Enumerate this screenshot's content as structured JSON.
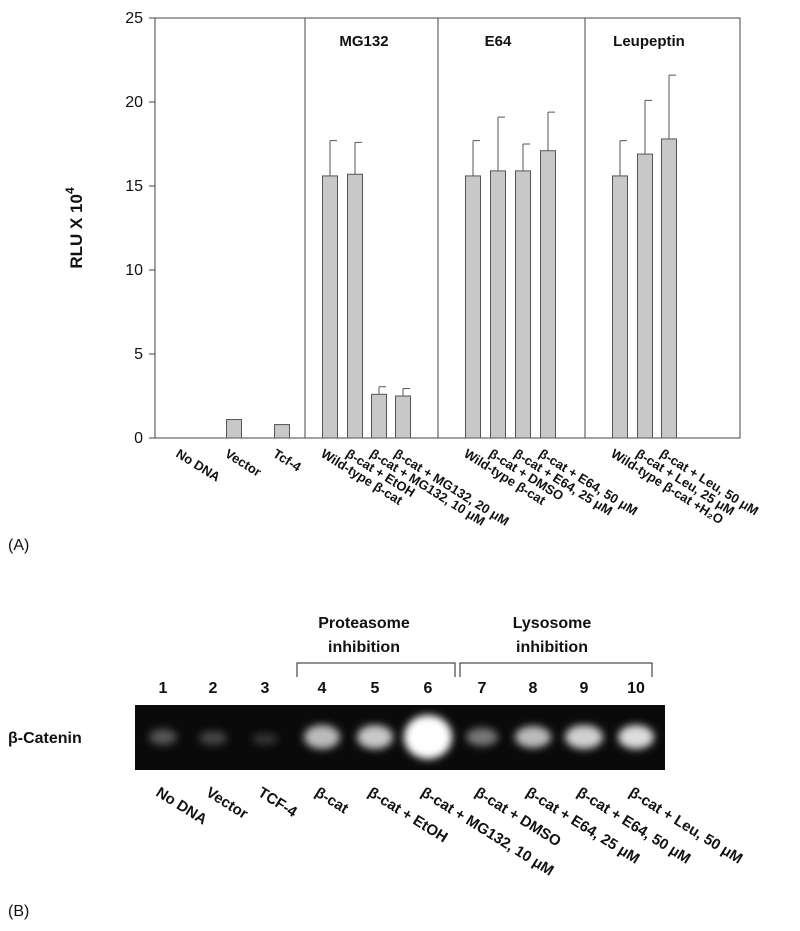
{
  "chart_data": {
    "type": "bar",
    "y_label": "RLU X 10",
    "y_label_superscript": "4",
    "groups": [
      "MG132",
      "E64",
      "Leupeptin"
    ],
    "categories": [
      "No DNA",
      "Vector",
      "Tcf-4",
      "Wild-type β-cat",
      "β-cat + EtOH",
      "β-cat + MG132, 10 μM",
      "β-cat + MG132, 20 μM",
      "Wild-type β-cat",
      "β-cat + DMSO",
      "β-cat + E64, 25 μM",
      "β-cat + E64, 50 μM",
      "Wild-type β-cat +H₂O",
      "β-cat + Leu, 25 μM",
      "β-cat + Leu, 50 μM"
    ],
    "values": [
      0,
      1.1,
      0.8,
      15.6,
      15.7,
      2.6,
      2.5,
      15.6,
      15.9,
      15.9,
      17.1,
      15.6,
      16.9,
      17.8
    ],
    "errors": [
      null,
      null,
      null,
      2.1,
      1.9,
      0.45,
      0.45,
      2.1,
      3.2,
      1.6,
      2.3,
      2.1,
      3.2,
      3.8
    ],
    "color": "#c8c8c8",
    "ylim": [
      0,
      25
    ],
    "yticks": [
      0,
      5,
      10,
      15,
      20,
      25
    ]
  },
  "panel_labels": [
    "(A)",
    "(B)"
  ],
  "panel_b": {
    "row_label": "β-Catenin",
    "brackets": [
      [
        "Proteasome",
        "inhibition"
      ],
      [
        "Lysosome",
        "inhibition"
      ]
    ],
    "lanes": [
      "1",
      "2",
      "3",
      "4",
      "5",
      "6",
      "7",
      "8",
      "9",
      "10"
    ],
    "lane_labels": [
      "No DNA",
      "Vector",
      "TCF-4",
      "β-cat",
      "β-cat + EtOH",
      "β-cat + MG132, 10 μM",
      "β-cat + DMSO",
      "β-cat + E64, 25 μM",
      "β-cat + E64, 50 μM",
      "β-cat + Leu, 50 μM"
    ]
  }
}
